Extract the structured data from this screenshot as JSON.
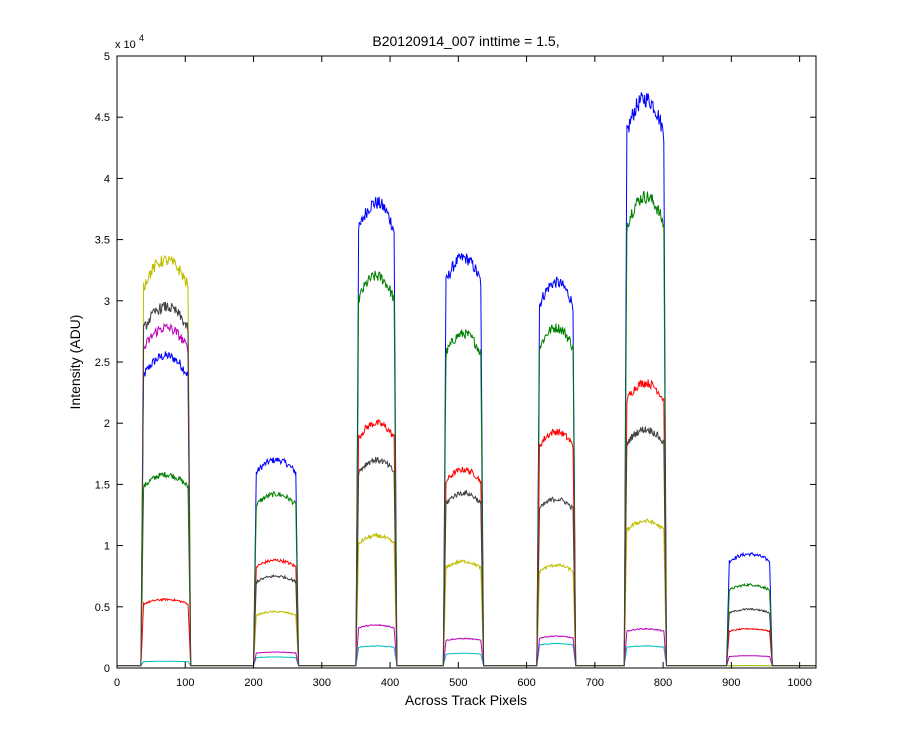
{
  "chart_data": {
    "type": "line",
    "title": "B20120914_007 inttime = 1.5,",
    "xlabel": "Across Track Pixels",
    "ylabel": "Intensity (ADU)",
    "y_exponent_label": "x 10",
    "y_exponent_power": "4",
    "xlim": [
      0,
      1024
    ],
    "ylim": [
      0,
      50000
    ],
    "xticks": [
      0,
      100,
      200,
      300,
      400,
      500,
      600,
      700,
      800,
      900,
      1000
    ],
    "yticks": [
      0,
      5000,
      10000,
      15000,
      20000,
      25000,
      30000,
      35000,
      40000,
      45000,
      50000
    ],
    "xtick_labels": [
      "0",
      "100",
      "200",
      "300",
      "400",
      "500",
      "600",
      "700",
      "800",
      "900",
      "1000"
    ],
    "ytick_labels": [
      "0",
      "0.5",
      "1",
      "1.5",
      "2",
      "2.5",
      "3",
      "3.5",
      "4",
      "4.5",
      "5"
    ],
    "grid": false,
    "baseline": 200,
    "peaks": [
      {
        "x_start": 35,
        "x_end": 108
      },
      {
        "x_start": 200,
        "x_end": 266
      },
      {
        "x_start": 350,
        "x_end": 410
      },
      {
        "x_start": 478,
        "x_end": 537
      },
      {
        "x_start": 615,
        "x_end": 672
      },
      {
        "x_start": 743,
        "x_end": 805
      },
      {
        "x_start": 893,
        "x_end": 960
      }
    ],
    "series": [
      {
        "color": "#0000ff",
        "peak_levels": [
          25500,
          17000,
          38000,
          33500,
          31500,
          46500,
          9300
        ]
      },
      {
        "color": "#008000",
        "peak_levels": [
          15800,
          14200,
          32000,
          27300,
          27800,
          38500,
          6800
        ]
      },
      {
        "color": "#ff0000",
        "peak_levels": [
          5600,
          8800,
          20000,
          16200,
          19300,
          23300,
          3200
        ]
      },
      {
        "color": "#00bfbf",
        "peak_levels": [
          550,
          900,
          1800,
          1200,
          2000,
          1800,
          200
        ]
      },
      {
        "color": "#bf00bf",
        "peak_levels": [
          27800,
          1300,
          3500,
          2400,
          2600,
          3200,
          1000
        ]
      },
      {
        "color": "#bfbf00",
        "peak_levels": [
          33300,
          4600,
          10800,
          8700,
          8400,
          12000,
          200
        ]
      },
      {
        "color": "#404040",
        "peak_levels": [
          29500,
          7500,
          17000,
          14300,
          13800,
          19500,
          4800
        ]
      }
    ]
  }
}
